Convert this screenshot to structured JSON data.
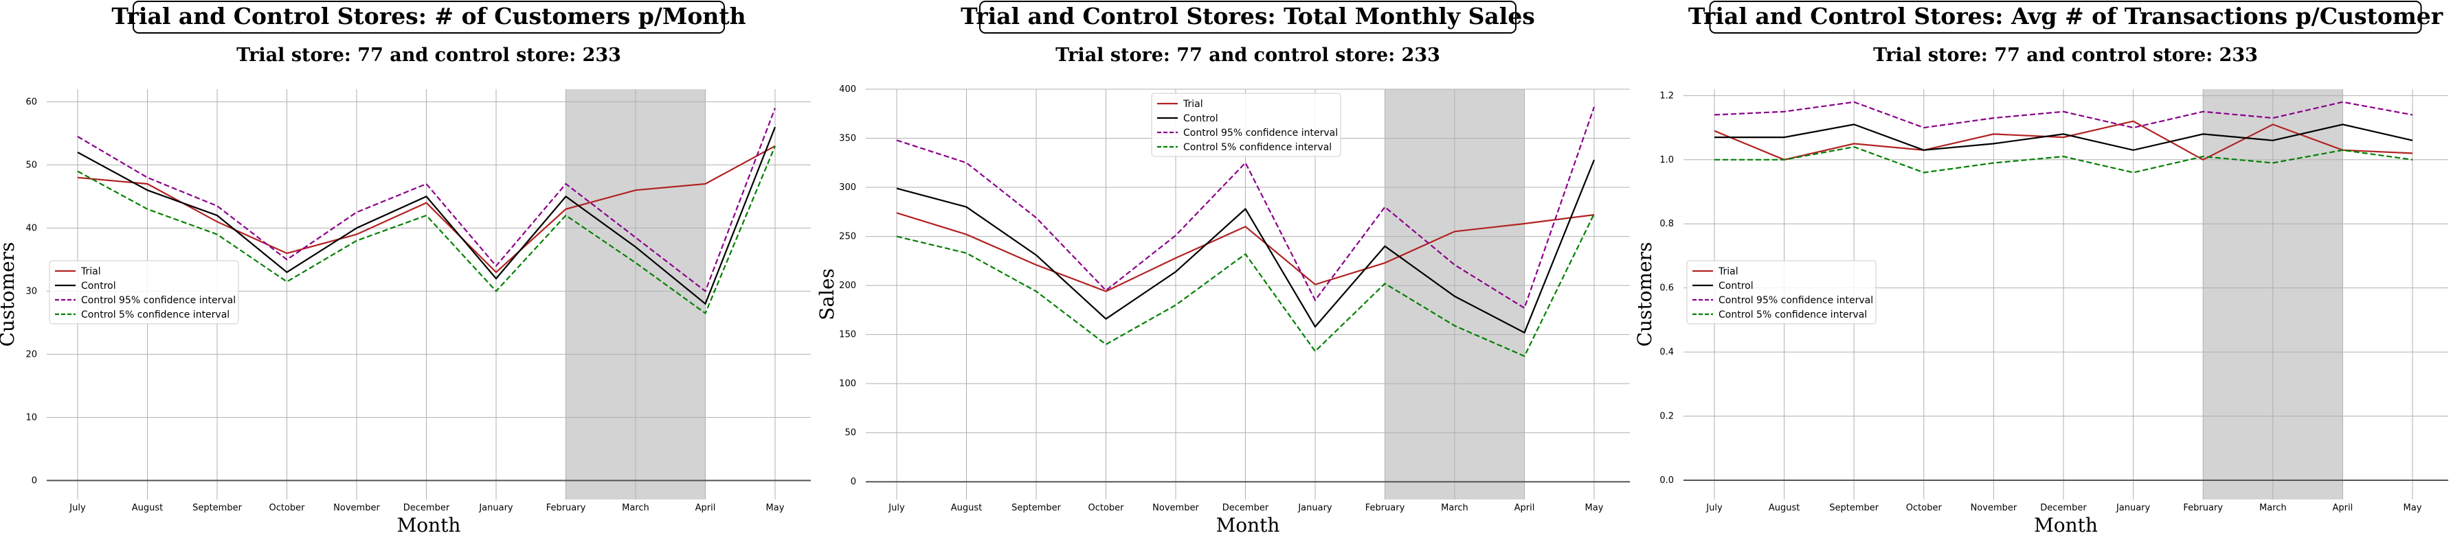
{
  "chart_data": [
    {
      "type": "line",
      "title": "Trial and Control Stores: # of Customers p/Month",
      "subtitle": "Trial store: 77 and control store: 233",
      "xlabel": "Month",
      "ylabel": "Customers",
      "categories": [
        "July",
        "August",
        "September",
        "October",
        "November",
        "December",
        "January",
        "February",
        "March",
        "April",
        "May"
      ],
      "ylim": [
        -3,
        62
      ],
      "yticks": [
        0,
        10,
        20,
        30,
        40,
        50,
        60
      ],
      "grid": true,
      "legend_position": "center-left",
      "highlight": {
        "from": "February",
        "to": "April",
        "color": "#d3d3d3"
      },
      "series": [
        {
          "name": "Trial",
          "values": [
            48,
            47,
            41,
            36,
            39,
            44,
            33,
            43,
            46,
            47,
            53
          ],
          "color": "#b22222",
          "dash": "solid"
        },
        {
          "name": "Control",
          "values": [
            52,
            46,
            42,
            33,
            40,
            45,
            32,
            45,
            37,
            28,
            56
          ],
          "color": "#000000",
          "dash": "solid"
        },
        {
          "name": "Control 95% confidence interval",
          "values": [
            54.5,
            48,
            43.5,
            35,
            42.5,
            47,
            34,
            47,
            38.5,
            30,
            59
          ],
          "color": "#8b008b",
          "dash": "dashed"
        },
        {
          "name": "Control 5% confidence interval",
          "values": [
            49,
            43,
            39,
            31.5,
            38,
            42,
            30,
            42,
            34.5,
            26.5,
            53
          ],
          "color": "#008000",
          "dash": "dashed"
        }
      ]
    },
    {
      "type": "line",
      "title": "Trial and Control Stores: Total Monthly Sales",
      "subtitle": "Trial store: 77 and control store: 233",
      "xlabel": "Month",
      "ylabel": "Sales",
      "categories": [
        "July",
        "August",
        "September",
        "October",
        "November",
        "December",
        "January",
        "February",
        "March",
        "April",
        "May"
      ],
      "ylim": [
        -18,
        400
      ],
      "yticks": [
        0,
        50,
        100,
        150,
        200,
        250,
        300,
        350,
        400
      ],
      "grid": true,
      "legend_position": "top-center",
      "highlight": {
        "from": "February",
        "to": "April",
        "color": "#d3d3d3"
      },
      "series": [
        {
          "name": "Trial",
          "values": [
            274,
            252,
            221,
            194,
            228,
            260,
            201,
            223,
            255,
            263,
            272
          ],
          "color": "#b22222",
          "dash": "solid"
        },
        {
          "name": "Control",
          "values": [
            299,
            280,
            231,
            166,
            214,
            278,
            158,
            240,
            189,
            152,
            328
          ],
          "color": "#000000",
          "dash": "solid"
        },
        {
          "name": "Control 95% confidence interval",
          "values": [
            348,
            325,
            269,
            195,
            251,
            325,
            185,
            280,
            221,
            177,
            382
          ],
          "color": "#8b008b",
          "dash": "dashed"
        },
        {
          "name": "Control 5% confidence interval",
          "values": [
            250,
            233,
            194,
            140,
            180,
            232,
            133,
            202,
            159,
            128,
            273
          ],
          "color": "#008000",
          "dash": "dashed"
        }
      ]
    },
    {
      "type": "line",
      "title": "Trial and Control Stores: Avg # of Transactions p/Customer",
      "subtitle": "Trial store: 77 and control store: 233",
      "xlabel": "Month",
      "ylabel": "Customers",
      "categories": [
        "July",
        "August",
        "September",
        "October",
        "November",
        "December",
        "January",
        "February",
        "March",
        "April",
        "May"
      ],
      "ylim": [
        -0.06,
        1.22
      ],
      "yticks": [
        0.0,
        0.2,
        0.4,
        0.6,
        0.8,
        1.0,
        1.2
      ],
      "grid": true,
      "legend_position": "center-left",
      "highlight": {
        "from": "February",
        "to": "April",
        "color": "#d3d3d3"
      },
      "series": [
        {
          "name": "Trial",
          "values": [
            1.09,
            1.0,
            1.05,
            1.03,
            1.08,
            1.07,
            1.12,
            1.0,
            1.11,
            1.03,
            1.02
          ],
          "color": "#b22222",
          "dash": "solid"
        },
        {
          "name": "Control",
          "values": [
            1.07,
            1.07,
            1.11,
            1.03,
            1.05,
            1.08,
            1.03,
            1.08,
            1.06,
            1.11,
            1.06
          ],
          "color": "#000000",
          "dash": "solid"
        },
        {
          "name": "Control 95% confidence interval",
          "values": [
            1.14,
            1.15,
            1.18,
            1.1,
            1.13,
            1.15,
            1.1,
            1.15,
            1.13,
            1.18,
            1.14
          ],
          "color": "#8b008b",
          "dash": "dashed"
        },
        {
          "name": "Control 5% confidence interval",
          "values": [
            1.0,
            1.0,
            1.04,
            0.96,
            0.99,
            1.01,
            0.96,
            1.01,
            0.99,
            1.03,
            1.0
          ],
          "color": "#008000",
          "dash": "dashed"
        }
      ]
    }
  ]
}
